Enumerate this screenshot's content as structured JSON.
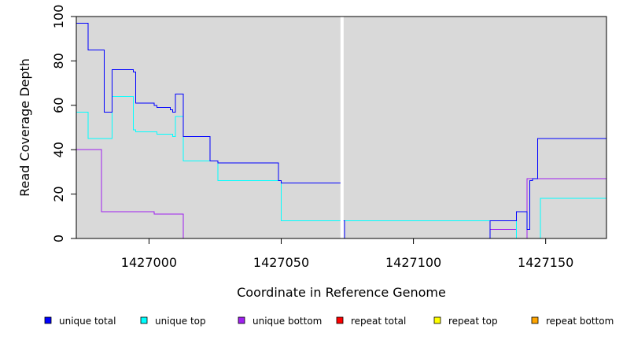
{
  "chart_data": {
    "type": "line",
    "step": true,
    "xlabel": "Coordinate in Reference Genome",
    "ylabel": "Read Coverage Depth",
    "xlim": [
      1426972.5,
      1427173
    ],
    "ylim": [
      0,
      100
    ],
    "xticks": [
      1427000,
      1427050,
      1427100,
      1427150
    ],
    "yticks": [
      0,
      20,
      40,
      60,
      80,
      100
    ],
    "background": "#d9d9d9",
    "grid": false,
    "gap_marker_x": 1427073,
    "legend_position": "bottom",
    "series": [
      {
        "name": "unique total",
        "color": "#0000ff",
        "x": [
          1426972.5,
          1426977,
          1426981.5,
          1426983,
          1426986,
          1426987,
          1426994,
          1426995,
          1427002,
          1427003,
          1427008,
          1427009,
          1427010,
          1427013,
          1427023,
          1427026,
          1427049,
          1427050,
          1427073,
          1427074,
          1427129,
          1427139,
          1427143,
          1427144,
          1427145,
          1427147,
          1427173
        ],
        "y": [
          97,
          85,
          85,
          57,
          76,
          76,
          75,
          61,
          60,
          59,
          58,
          57,
          65,
          46,
          35,
          34,
          26,
          25,
          8,
          0,
          8,
          12,
          4,
          26,
          27,
          45,
          45
        ]
      },
      {
        "name": "unique top",
        "color": "#00ffff",
        "x": [
          1426972.5,
          1426977,
          1426980,
          1426983,
          1426986,
          1426994,
          1426995,
          1427003,
          1427009,
          1427010,
          1427013,
          1427023,
          1427026,
          1427050,
          1427073,
          1427074,
          1427129,
          1427139,
          1427148,
          1427173
        ],
        "y": [
          57,
          45,
          45,
          45,
          64,
          49,
          48,
          47,
          46,
          55,
          35,
          35,
          26,
          8,
          0,
          8,
          8,
          0,
          18,
          18
        ]
      },
      {
        "name": "unique bottom",
        "color": "#a020f0",
        "x": [
          1426972.5,
          1426982,
          1427002,
          1427013,
          1427129,
          1427139,
          1427143,
          1427173
        ],
        "y": [
          40,
          12,
          11,
          0,
          4,
          0,
          27,
          27
        ]
      },
      {
        "name": "repeat total",
        "color": "#ff0000",
        "x": [
          1426972.5,
          1427173
        ],
        "y": [
          0,
          0
        ]
      },
      {
        "name": "repeat top",
        "color": "#ffff00",
        "x": [
          1426972.5,
          1427173
        ],
        "y": [
          0,
          0
        ]
      },
      {
        "name": "repeat bottom",
        "color": "#ffa500",
        "x": [
          1426972.5,
          1427173
        ],
        "y": [
          0,
          0
        ]
      }
    ]
  }
}
